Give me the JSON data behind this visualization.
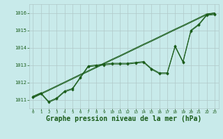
{
  "background_color": "#c8eaea",
  "grid_color": "#b0c8c8",
  "line_color": "#1a5c1a",
  "title": "Graphe pression niveau de la mer (hPa)",
  "title_fontsize": 7,
  "xlim": [
    -0.5,
    23.5
  ],
  "ylim": [
    1010.5,
    1016.5
  ],
  "yticks": [
    1011,
    1012,
    1013,
    1014,
    1015,
    1016
  ],
  "xticks": [
    0,
    1,
    2,
    3,
    4,
    5,
    6,
    7,
    8,
    9,
    10,
    11,
    12,
    13,
    14,
    15,
    16,
    17,
    18,
    19,
    20,
    21,
    22,
    23
  ],
  "y_wiggly1": [
    1011.2,
    1011.4,
    1010.9,
    1011.1,
    1011.5,
    1011.65,
    1012.3,
    1012.95,
    1013.0,
    1013.05,
    1013.1,
    1013.1,
    1013.1,
    1013.15,
    1013.2,
    1012.8,
    1012.55,
    1012.55,
    1014.1,
    1013.2,
    1015.0,
    1015.35,
    1015.9,
    1015.95
  ],
  "y_wiggly2": [
    1011.15,
    1011.35,
    1010.85,
    1011.05,
    1011.45,
    1011.6,
    1012.25,
    1012.9,
    1012.95,
    1013.0,
    1013.05,
    1013.05,
    1013.05,
    1013.1,
    1013.15,
    1012.75,
    1012.5,
    1012.5,
    1014.05,
    1013.15,
    1014.95,
    1015.3,
    1015.85,
    1015.9
  ],
  "y_linear1": [
    1011.15,
    1011.37,
    1011.58,
    1011.8,
    1012.02,
    1012.24,
    1012.46,
    1012.67,
    1012.89,
    1013.11,
    1013.33,
    1013.54,
    1013.76,
    1013.98,
    1014.2,
    1014.41,
    1014.63,
    1014.85,
    1015.07,
    1015.28,
    1015.5,
    1015.72,
    1015.94,
    1016.0
  ],
  "y_linear2": [
    1011.1,
    1011.32,
    1011.53,
    1011.75,
    1011.97,
    1012.19,
    1012.41,
    1012.62,
    1012.84,
    1013.06,
    1013.28,
    1013.49,
    1013.71,
    1013.93,
    1014.15,
    1014.36,
    1014.58,
    1014.8,
    1015.02,
    1015.23,
    1015.45,
    1015.67,
    1015.89,
    1016.0
  ]
}
